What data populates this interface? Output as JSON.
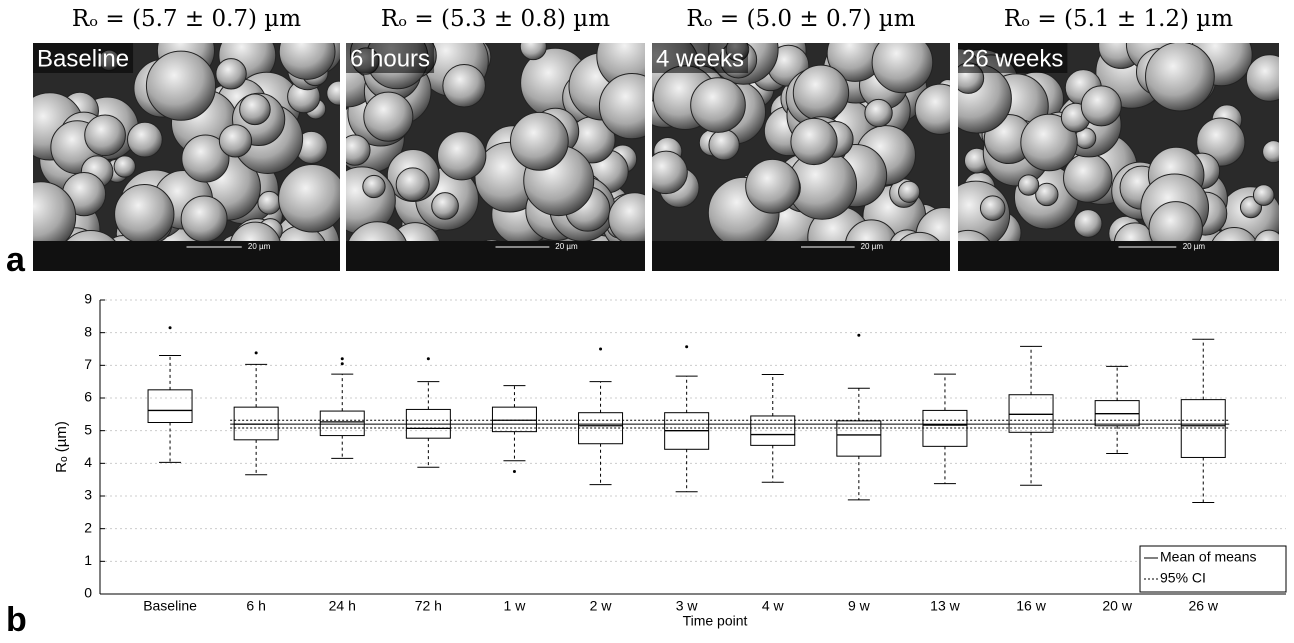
{
  "panel_a": {
    "label": "a",
    "images": [
      {
        "title": "Rₒ = (5.7 ± 0.7) µm",
        "label": "Baseline",
        "scale_bar": "20 µm"
      },
      {
        "title": "Rₒ = (5.3 ± 0.8) µm",
        "label": "6 hours",
        "scale_bar": "20 µm"
      },
      {
        "title": "Rₒ = (5.0 ± 0.7) µm",
        "label": "4 weeks",
        "scale_bar": "20 µm"
      },
      {
        "title": "Rₒ = (5.1 ± 1.2) µm",
        "label": "26 weeks",
        "scale_bar": "20 µm"
      }
    ]
  },
  "panel_b_label": "b",
  "chart_data": {
    "type": "box",
    "xlabel": "Time point",
    "ylabel": "Rₒ (µm)",
    "categories": [
      "Baseline",
      "6 h",
      "24 h",
      "72 h",
      "1 w",
      "2 w",
      "3 w",
      "4 w",
      "9 w",
      "13 w",
      "16 w",
      "20 w",
      "26 w"
    ],
    "boxes": [
      {
        "low": 4.03,
        "q1": 5.25,
        "median": 5.62,
        "q3": 6.25,
        "high": 7.3,
        "outliers": [
          8.15
        ]
      },
      {
        "low": 3.65,
        "q1": 4.72,
        "median": 5.2,
        "q3": 5.72,
        "high": 7.03,
        "outliers": [
          7.38
        ]
      },
      {
        "low": 4.15,
        "q1": 4.85,
        "median": 5.27,
        "q3": 5.6,
        "high": 6.73,
        "outliers": [
          7.05,
          7.2
        ]
      },
      {
        "low": 3.88,
        "q1": 4.77,
        "median": 5.07,
        "q3": 5.65,
        "high": 6.5,
        "outliers": [
          7.2
        ]
      },
      {
        "low": 4.08,
        "q1": 4.97,
        "median": 5.32,
        "q3": 5.72,
        "high": 6.38,
        "outliers": [
          3.75
        ]
      },
      {
        "low": 3.35,
        "q1": 4.6,
        "median": 5.15,
        "q3": 5.55,
        "high": 6.5,
        "outliers": [
          7.5
        ]
      },
      {
        "low": 3.13,
        "q1": 4.43,
        "median": 5.0,
        "q3": 5.55,
        "high": 6.67,
        "outliers": [
          7.57
        ]
      },
      {
        "low": 3.42,
        "q1": 4.55,
        "median": 4.88,
        "q3": 5.45,
        "high": 6.72,
        "outliers": []
      },
      {
        "low": 2.88,
        "q1": 4.22,
        "median": 4.87,
        "q3": 5.3,
        "high": 6.3,
        "outliers": [
          7.92
        ]
      },
      {
        "low": 3.38,
        "q1": 4.52,
        "median": 5.17,
        "q3": 5.62,
        "high": 6.73,
        "outliers": []
      },
      {
        "low": 3.33,
        "q1": 4.95,
        "median": 5.5,
        "q3": 6.1,
        "high": 7.58,
        "outliers": []
      },
      {
        "low": 4.3,
        "q1": 5.15,
        "median": 5.52,
        "q3": 5.92,
        "high": 6.97,
        "outliers": []
      },
      {
        "low": 2.8,
        "q1": 4.18,
        "median": 5.15,
        "q3": 5.95,
        "high": 7.8,
        "outliers": []
      }
    ],
    "reference_lines": [
      {
        "name": "Mean of means",
        "value": 5.2,
        "style": "solid"
      },
      {
        "name": "95% CI",
        "values": [
          5.08,
          5.32
        ],
        "style": "dotted"
      }
    ],
    "ylim": [
      0,
      9
    ],
    "yticks": [
      0,
      1,
      2,
      3,
      4,
      5,
      6,
      7,
      8,
      9
    ],
    "grid": true,
    "legend": "lower right"
  }
}
